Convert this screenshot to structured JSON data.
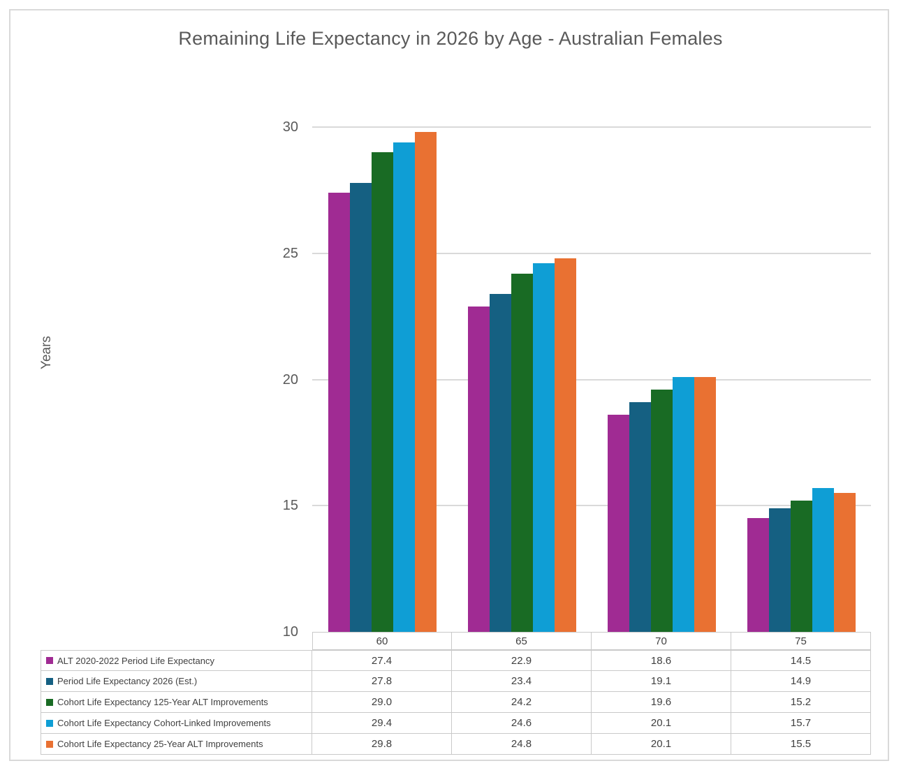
{
  "chart_data": {
    "type": "bar",
    "title": "Remaining Life Expectancy in 2026 by Age - Australian Females",
    "xlabel": "",
    "ylabel": "Years",
    "categories": [
      "60",
      "65",
      "70",
      "75"
    ],
    "series": [
      {
        "name": "ALT 2020-2022 Period Life Expectancy",
        "color": "#A02B93",
        "values": [
          27.4,
          22.9,
          18.6,
          14.5
        ],
        "display": [
          "27.4",
          "22.9",
          "18.6",
          "14.5"
        ]
      },
      {
        "name": "Period Life Expectancy 2026 (Est.)",
        "color": "#156082",
        "values": [
          27.8,
          23.4,
          19.1,
          14.9
        ],
        "display": [
          "27.8",
          "23.4",
          "19.1",
          "14.9"
        ]
      },
      {
        "name": "Cohort Life Expectancy 125-Year ALT Improvements",
        "color": "#196B24",
        "values": [
          29.0,
          24.2,
          19.6,
          15.2
        ],
        "display": [
          "29.0",
          "24.2",
          "19.6",
          "15.2"
        ]
      },
      {
        "name": "Cohort Life Expectancy Cohort-Linked Improvements",
        "color": "#0F9ED5",
        "values": [
          29.4,
          24.6,
          20.1,
          15.7
        ],
        "display": [
          "29.4",
          "24.6",
          "20.1",
          "15.7"
        ]
      },
      {
        "name": "Cohort Life Expectancy 25-Year ALT Improvements",
        "color": "#E97132",
        "values": [
          29.8,
          24.8,
          20.1,
          15.5
        ],
        "display": [
          "29.8",
          "24.8",
          "20.1",
          "15.5"
        ]
      }
    ],
    "ylim": [
      10,
      30
    ],
    "ytick_step": 5,
    "yticks": [
      "30",
      "25",
      "20",
      "15",
      "10"
    ],
    "grid": true,
    "legend_position": "data-table-below-chart",
    "gridline_color": "#D9D9D9"
  }
}
